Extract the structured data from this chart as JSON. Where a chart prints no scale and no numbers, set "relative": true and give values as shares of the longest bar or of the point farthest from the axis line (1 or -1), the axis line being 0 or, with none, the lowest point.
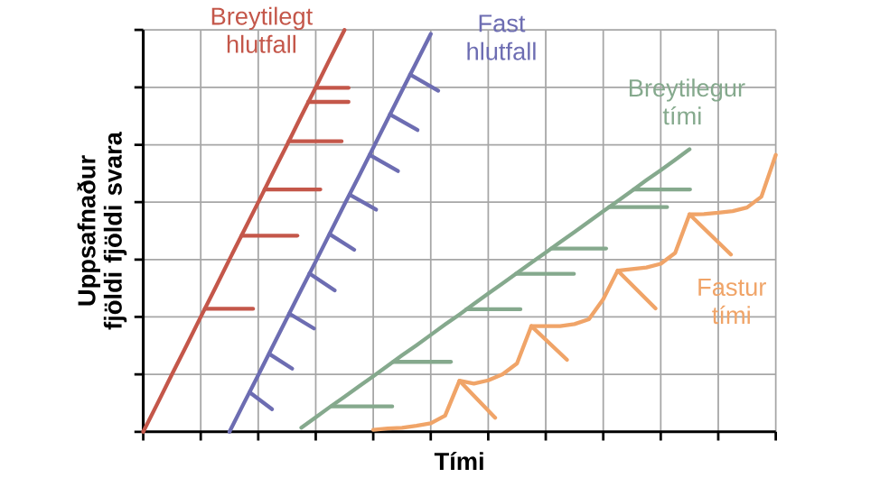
{
  "chart_data": {
    "type": "line",
    "relative": true,
    "xlabel": "Tími",
    "ylabel": "Uppsafnaður fjöldi fjöldi svara",
    "grid": true,
    "categories": [
      null,
      null,
      null,
      null,
      null,
      null,
      null,
      null,
      null,
      null,
      null,
      null,
      null,
      null,
      null,
      null,
      null,
      null,
      null,
      null,
      null,
      null,
      null,
      null,
      null,
      null,
      null,
      null,
      null,
      null,
      null,
      null,
      null,
      null,
      null,
      null,
      null,
      null,
      null,
      null,
      null,
      null,
      null,
      null,
      null
    ],
    "series": [
      {
        "name": "Breytilegt hlutfall",
        "color": "#c4574a",
        "values": [
          0,
          0.071,
          0.143,
          0.214,
          0.286,
          0.357,
          0.429,
          0.5,
          0.571,
          0.643,
          0.714,
          0.786,
          0.857,
          0.929,
          1,
          null,
          null,
          null,
          null,
          null,
          null,
          null,
          null,
          null,
          null,
          null,
          null,
          null,
          null,
          null,
          null,
          null,
          null,
          null,
          null,
          null,
          null,
          null,
          null,
          null,
          null,
          null,
          null,
          null,
          null
        ]
      },
      {
        "name": "Fast hlutfall",
        "color": "#6d6db2",
        "values": [
          null,
          null,
          null,
          null,
          null,
          null,
          0,
          0.071,
          0.141,
          0.212,
          0.283,
          0.354,
          0.424,
          0.495,
          0.566,
          0.636,
          0.707,
          0.778,
          0.849,
          0.919,
          0.99,
          null,
          null,
          null,
          null,
          null,
          null,
          null,
          null,
          null,
          null,
          null,
          null,
          null,
          null,
          null,
          null,
          null,
          null,
          null,
          null,
          null,
          null,
          null,
          null
        ]
      },
      {
        "name": "Breytilegur tími",
        "color": "#85a98d",
        "values": [
          null,
          null,
          null,
          null,
          null,
          null,
          null,
          null,
          null,
          null,
          null,
          0.01,
          0.036,
          0.062,
          0.087,
          0.113,
          0.138,
          0.164,
          0.19,
          0.215,
          0.241,
          0.267,
          0.292,
          0.318,
          0.344,
          0.369,
          0.395,
          0.421,
          0.446,
          0.472,
          0.497,
          0.523,
          0.549,
          0.574,
          0.6,
          0.626,
          0.651,
          0.677,
          0.703,
          null,
          null,
          null,
          null,
          null,
          null
        ]
      },
      {
        "name": "Fastur tími",
        "color": "#f0a468",
        "values": [
          null,
          null,
          null,
          null,
          null,
          null,
          null,
          null,
          null,
          null,
          null,
          null,
          null,
          null,
          null,
          null,
          0.005,
          0.008,
          0.01,
          0.015,
          0.021,
          0.04,
          0.127,
          0.12,
          0.128,
          0.143,
          0.17,
          0.263,
          0.263,
          0.263,
          0.268,
          0.28,
          0.33,
          0.401,
          0.405,
          0.409,
          0.418,
          0.445,
          0.541,
          0.542,
          0.545,
          0.549,
          0.558,
          0.585,
          0.689
        ]
      }
    ]
  }
}
